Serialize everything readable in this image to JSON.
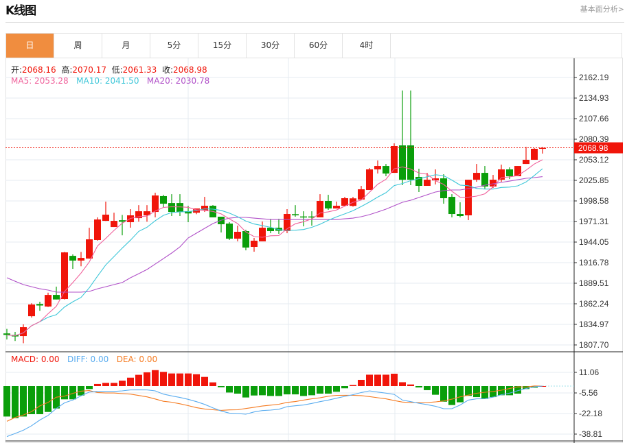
{
  "header": {
    "title": "K线图",
    "link": "基本面分析>"
  },
  "tabs": [
    {
      "label": "日",
      "active": true
    },
    {
      "label": "周"
    },
    {
      "label": "月"
    },
    {
      "label": "5分"
    },
    {
      "label": "15分"
    },
    {
      "label": "30分"
    },
    {
      "label": "60分"
    },
    {
      "label": "4时"
    }
  ],
  "legend": {
    "open_label": "开:",
    "open": "2068.16",
    "high_label": "高:",
    "high": "2070.17",
    "low_label": "低:",
    "low": "2061.33",
    "close_label": "收:",
    "close": "2068.98",
    "ma5": "MA5: 2053.28",
    "ma10": "MA10: 2041.50",
    "ma20": "MA20: 2030.78"
  },
  "macd_legend": {
    "macd": "MACD: 0.00",
    "diff": "DIFF: 0.00",
    "dea": "DEA: 0.00"
  },
  "colors": {
    "up": "#f0150a",
    "down": "#0a9e0a",
    "ma5": "#f0609a",
    "ma10": "#3cc6d8",
    "ma20": "#b050c8",
    "diff": "#5aacef",
    "dea": "#f57a20",
    "active_tab": "#f08d3f"
  },
  "chart_data": [
    {
      "type": "candlestick",
      "yticks": [
        "2162.19",
        "2134.93",
        "2107.66",
        "2080.39",
        "2053.12",
        "2025.85",
        "1998.58",
        "1971.31",
        "1944.05",
        "1916.78",
        "1889.51",
        "1862.24",
        "1834.97",
        "1807.70"
      ],
      "ylim": [
        1807.7,
        2162.19
      ],
      "last_price": "2068.98",
      "grid": true,
      "ohlc": [
        [
          1823,
          1829,
          1815,
          1821
        ],
        [
          1821,
          1825,
          1813,
          1819
        ],
        [
          1819.5,
          1835,
          1810,
          1831.3
        ],
        [
          1845.8,
          1863,
          1844,
          1861.3
        ],
        [
          1862,
          1865,
          1853,
          1860
        ],
        [
          1858.6,
          1877,
          1858,
          1874
        ],
        [
          1874,
          1885,
          1868,
          1868
        ],
        [
          1868.6,
          1931,
          1868,
          1930.4
        ],
        [
          1925.8,
          1927.7,
          1908.6,
          1919.5
        ],
        [
          1919.5,
          1931,
          1912,
          1923.1
        ],
        [
          1922.2,
          1963,
          1922,
          1947.7
        ],
        [
          1946.8,
          1976.8,
          1945.9,
          1974
        ],
        [
          1972.2,
          1997.7,
          1972,
          1980.4
        ],
        [
          1964,
          1983,
          1964,
          1972.2
        ],
        [
          1973,
          1980,
          1953,
          1971
        ],
        [
          1970.4,
          1987.7,
          1963.1,
          1979.5
        ],
        [
          1975.8,
          1993,
          1971,
          1984.9
        ],
        [
          1979.5,
          1993,
          1971,
          1984.9
        ],
        [
          1984,
          2009.5,
          1976.8,
          2005.8
        ],
        [
          2005,
          2006.7,
          1990.4,
          1994.9
        ],
        [
          1995.8,
          2007.6,
          1978.6,
          1984
        ],
        [
          1995.8,
          2007.6,
          1978.6,
          1984
        ],
        [
          1984.9,
          1992.2,
          1970.4,
          1982
        ],
        [
          1983,
          1988.6,
          1981,
          1988.6
        ],
        [
          1985.8,
          2004,
          1984,
          1992.2
        ],
        [
          1992.2,
          1993.1,
          1976.8,
          1976.8
        ],
        [
          1977.7,
          1977.7,
          1956.8,
          1967.7
        ],
        [
          1968.6,
          1970.4,
          1946.8,
          1948.6
        ],
        [
          1948.6,
          1965.9,
          1945,
          1957.7
        ],
        [
          1958.6,
          1960.4,
          1933.1,
          1936.8
        ],
        [
          1937.7,
          1949.5,
          1931.3,
          1945.9
        ],
        [
          1945,
          1971.3,
          1945,
          1963.1
        ],
        [
          1963.1,
          1974.9,
          1955.8,
          1958.6
        ],
        [
          1963,
          1975,
          1955,
          1959
        ],
        [
          1958.6,
          1987.7,
          1955.8,
          1981.3
        ],
        [
          1981,
          1993,
          1977.7,
          1979.5
        ],
        [
          1978,
          1984.9,
          1964.9,
          1976.8
        ],
        [
          1978,
          1984.9,
          1965.8,
          1977
        ],
        [
          1976.8,
          2007.6,
          1976.8,
          1998.6
        ],
        [
          1998.6,
          2006.7,
          1986.8,
          1988.6
        ],
        [
          1988.6,
          1997.7,
          1988.6,
          1992.2
        ],
        [
          1992.2,
          2004,
          1991.3,
          2002.2
        ],
        [
          1992,
          2004,
          1991,
          2002
        ],
        [
          2000.4,
          2018.6,
          2000.4,
          2014
        ],
        [
          2013.1,
          2042.2,
          2013.1,
          2040.4
        ],
        [
          2040.4,
          2052.2,
          2034.9,
          2044.9
        ],
        [
          2044.9,
          2047.6,
          2031.3,
          2034.9
        ],
        [
          2035.8,
          2074.9,
          2035.8,
          2071.3
        ],
        [
          2072.2,
          2144.9,
          2019.5,
          2026.7
        ],
        [
          2072.2,
          2144.9,
          2019.5,
          2026.7
        ],
        [
          2030.4,
          2041.3,
          2010.4,
          2018.6
        ],
        [
          2018.6,
          2035.8,
          2018.6,
          2026.7
        ],
        [
          2025.8,
          2040.4,
          2020.4,
          2028.5
        ],
        [
          2028.5,
          2034,
          1994.9,
          2002.2
        ],
        [
          2004,
          2007.6,
          1976.8,
          1981.3
        ],
        [
          1981.3,
          1996.8,
          1976.8,
          1978.6
        ],
        [
          1979.5,
          2026.7,
          1973.1,
          2026.7
        ],
        [
          2026.7,
          2047.6,
          2024,
          2035.8
        ],
        [
          2035.8,
          2044.9,
          2014.9,
          2017.7
        ],
        [
          2017.7,
          2033.1,
          2015.8,
          2026.7
        ],
        [
          2026.7,
          2046.7,
          2024,
          2040.4
        ],
        [
          2040.4,
          2043.1,
          2027.6,
          2031.3
        ],
        [
          2031.3,
          2044.9,
          2031.3,
          2044.9
        ],
        [
          2047.6,
          2070.4,
          2047.6,
          2053.1
        ],
        [
          2053.1,
          2068.6,
          2053.1,
          2067.7
        ],
        [
          2068.16,
          2070.17,
          2061.33,
          2068.98
        ]
      ],
      "ma20": [
        1896.8,
        1892.2,
        1887.7,
        1884.9,
        1882.2,
        1880.4,
        1877.7,
        1877.7,
        1877.7,
        1877.7,
        1878.6,
        1882.2,
        1884.9,
        1887.7,
        1890.4,
        1896.8,
        1902.2,
        1907.7,
        1914.9,
        1922.2,
        1929.5,
        1937.7,
        1949.5,
        1955.9,
        1962.2,
        1968.6,
        1973.1,
        1975.8,
        1976.8,
        1976.8,
        1975.8,
        1974.9,
        1974,
        1974,
        1974,
        1974,
        1974,
        1974,
        1974,
        1974,
        1974,
        1974.9,
        1975.8,
        1977.7,
        1980.4,
        1984,
        1987.7,
        1992.2,
        1996.8,
        1999.5,
        2003.1,
        2006.8,
        2010.4,
        2012.2,
        2013.1,
        2013.1,
        2014.9,
        2016.8,
        2019.5,
        2021.3,
        2023.1,
        2024.9,
        2026.7,
        2028.6,
        2029.5,
        2030.78
      ]
    },
    {
      "type": "bar+line",
      "yticks": [
        "11.06",
        "-5.56",
        "-22.18",
        "-38.81"
      ],
      "ylim": [
        -41,
        16
      ],
      "macd": [
        -24.6,
        -25.9,
        -24.6,
        -22.7,
        -22.7,
        -20.9,
        -18.1,
        -10.7,
        -10.7,
        -7.6,
        -2.4,
        1.7,
        2.6,
        2.6,
        4.4,
        6.8,
        9.1,
        11.1,
        12.9,
        11.5,
        10.2,
        10.2,
        10.2,
        9.6,
        7.4,
        3.0,
        -0.9,
        -5.2,
        -6.1,
        -9.2,
        -7.6,
        -7.4,
        -8.0,
        -8.0,
        -6.7,
        -6.7,
        -8.0,
        -7.4,
        -6.1,
        -6.1,
        -4.6,
        -1.8,
        0.9,
        5.0,
        9.2,
        9.2,
        9.2,
        10.0,
        3.1,
        1.3,
        -1.1,
        -3.3,
        -7.0,
        -12.6,
        -15.3,
        -13.1,
        -7.9,
        -8.9,
        -10.3,
        -8.9,
        -7.4,
        -7.4,
        -6.1,
        -2.4,
        -1.3,
        0
      ],
      "diff": [
        -40.8,
        -38.3,
        -35.7,
        -32.0,
        -27.4,
        -23.7,
        -18.1,
        -13.5,
        -11.3,
        -7.9,
        -4.8,
        -4.3,
        -4.3,
        -4.3,
        -3.9,
        -3.1,
        -3.0,
        -3.1,
        -3.9,
        -6.5,
        -7.9,
        -9.2,
        -10.7,
        -12.6,
        -14.8,
        -17.6,
        -20.1,
        -21.8,
        -22.2,
        -22.7,
        -20.9,
        -19.8,
        -19.4,
        -18.7,
        -16.6,
        -15.9,
        -15.3,
        -14.0,
        -12.6,
        -11.3,
        -9.8,
        -8.3,
        -7.0,
        -5.2,
        -3.9,
        -4.8,
        -5.7,
        -6.7,
        -11.3,
        -12.6,
        -13.9,
        -15.0,
        -16.3,
        -18.3,
        -18.3,
        -15.3,
        -11.3,
        -10.3,
        -10.2,
        -8.9,
        -7.0,
        -5.7,
        -3.7,
        -2.0,
        -0.6,
        0
      ],
      "dea": [
        -28.5,
        -25.3,
        -23.4,
        -20.6,
        -16.0,
        -13.2,
        -9.0,
        -8.1,
        -5.9,
        -4.1,
        -3.6,
        -5.2,
        -5.6,
        -5.6,
        -6.1,
        -6.5,
        -7.6,
        -8.7,
        -10.4,
        -12.3,
        -13.0,
        -14.3,
        -15.8,
        -17.4,
        -18.5,
        -19.1,
        -19.6,
        -19.2,
        -19.1,
        -18.1,
        -17.1,
        -16.1,
        -15.4,
        -14.7,
        -13.2,
        -12.5,
        -11.3,
        -10.3,
        -9.5,
        -8.2,
        -7.5,
        -7.4,
        -7.5,
        -7.7,
        -8.5,
        -9.4,
        -10.3,
        -11.7,
        -12.9,
        -13.3,
        -13.3,
        -13.3,
        -12.8,
        -12.0,
        -10.6,
        -8.7,
        -7.3,
        -5.8,
        -5.0,
        -4.4,
        -3.3,
        -2.0,
        -0.6,
        -0.8,
        0.1,
        0
      ]
    }
  ]
}
